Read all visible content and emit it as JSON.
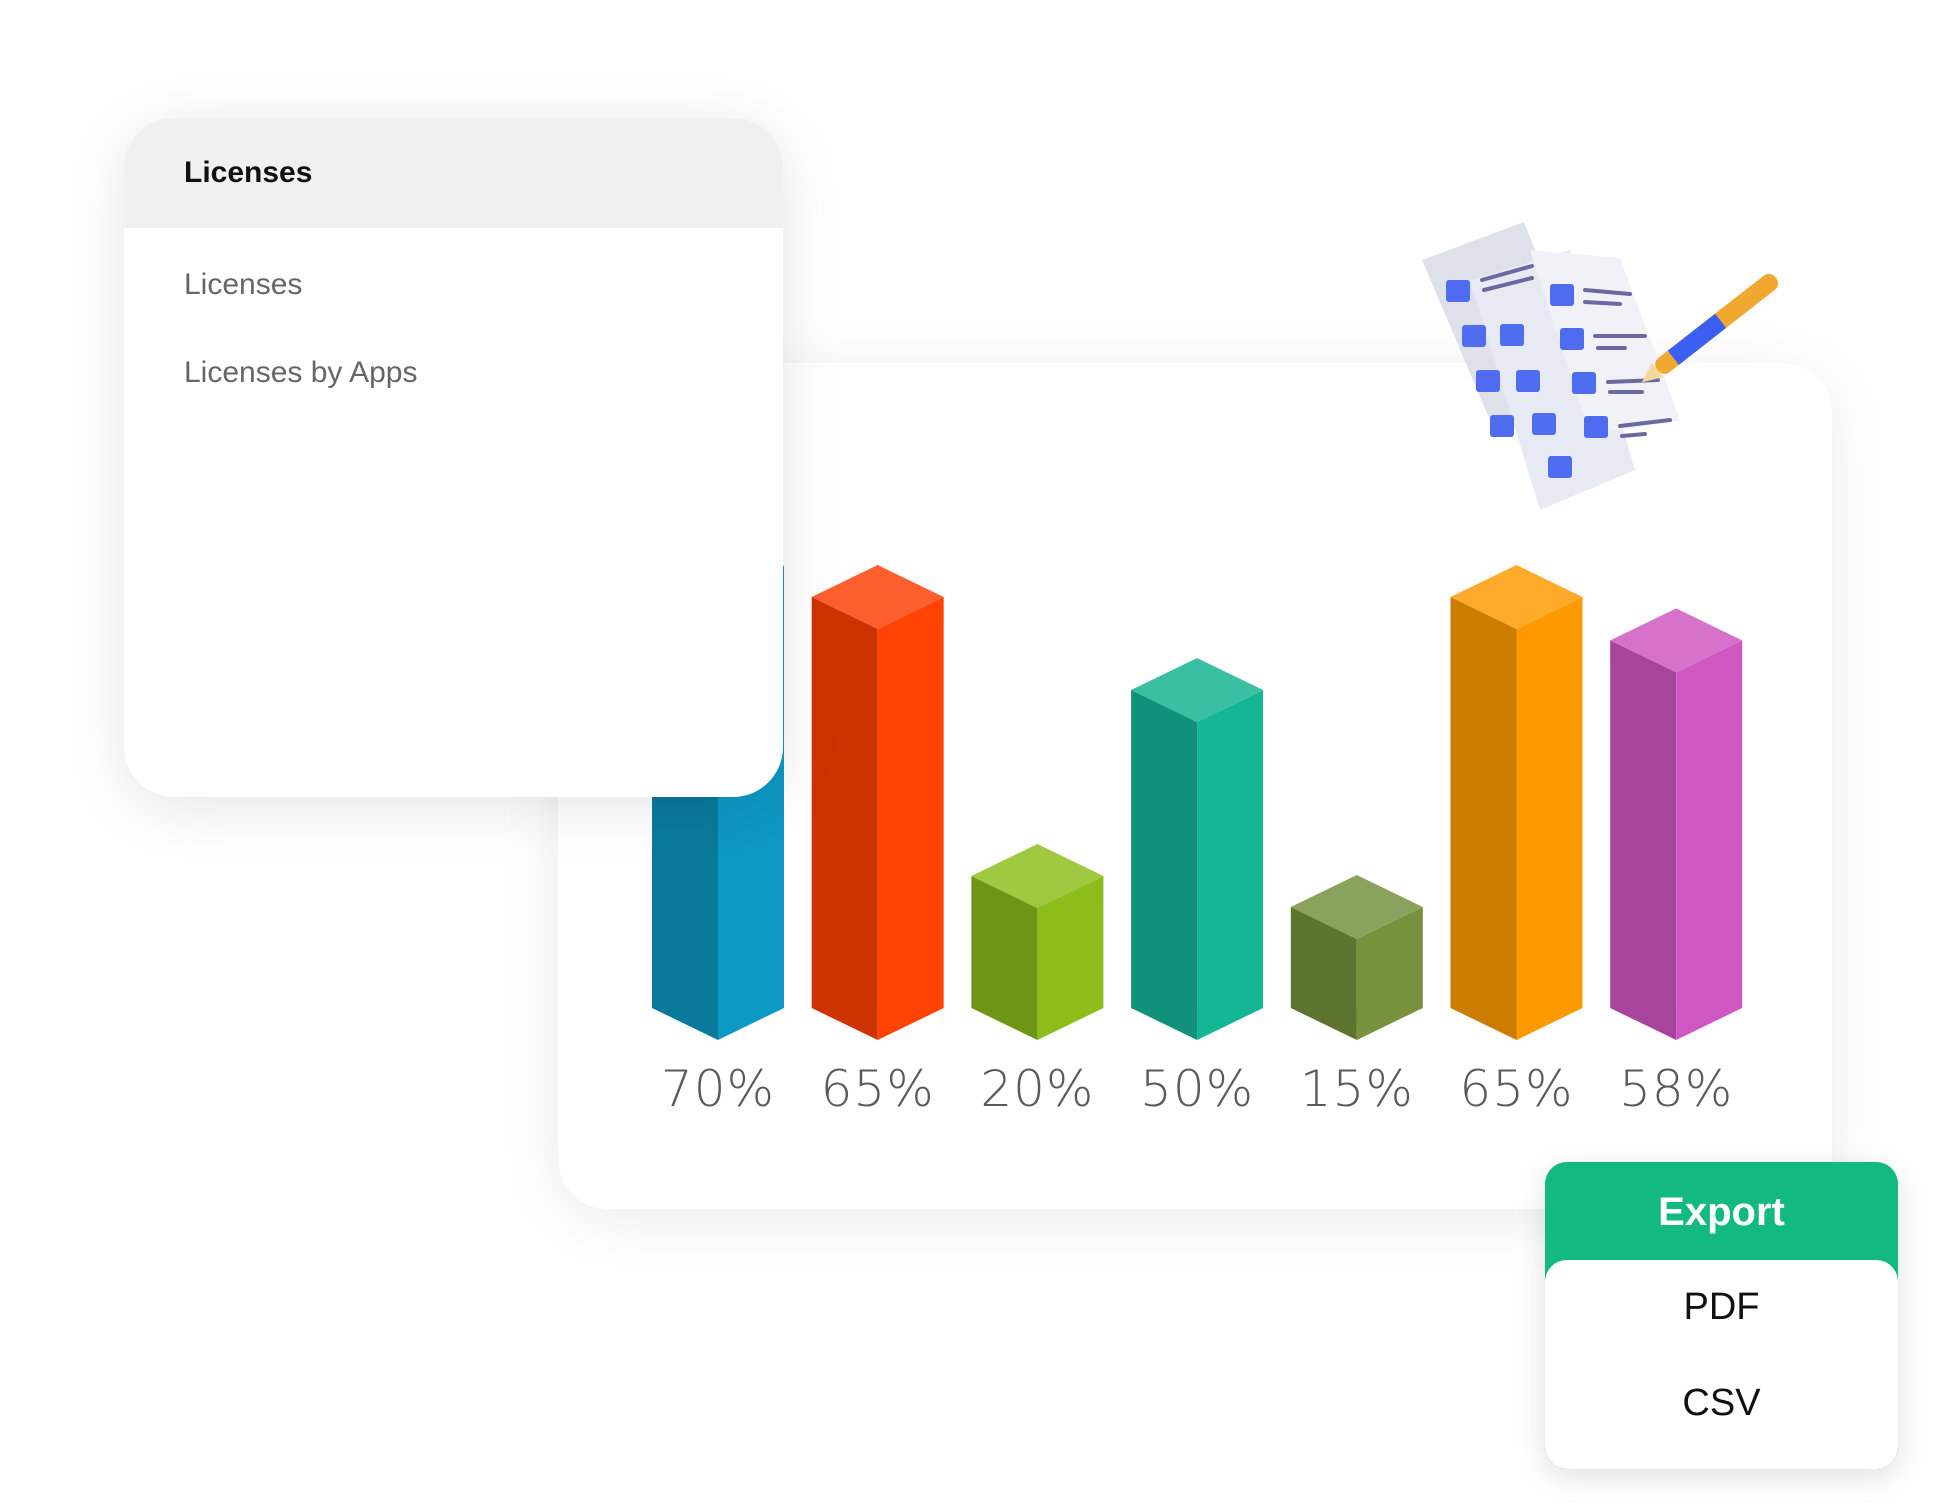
{
  "menu": {
    "header": "Licenses",
    "items": [
      {
        "label": "Licenses"
      },
      {
        "label": "Licenses by Apps"
      }
    ]
  },
  "chart_data": {
    "type": "bar",
    "style": "3d-isometric",
    "categories": [
      "",
      "",
      "",
      "",
      "",
      "",
      ""
    ],
    "values": [
      70,
      65,
      20,
      50,
      15,
      65,
      58
    ],
    "labels": [
      "70%",
      "65%",
      "20%",
      "50%",
      "15%",
      "65%",
      "58%"
    ],
    "colors": [
      {
        "front": "#0e98c4",
        "side": "#0a7a9b",
        "top": "#2aa8d0"
      },
      {
        "front": "#ff4304",
        "side": "#cc3300",
        "top": "#ff5e2e"
      },
      {
        "front": "#8cbd1a",
        "side": "#6e9616",
        "top": "#a0c840"
      },
      {
        "front": "#15b695",
        "side": "#11917a",
        "top": "#3bbfa3"
      },
      {
        "front": "#77913d",
        "side": "#5d7431",
        "top": "#8aa35c"
      },
      {
        "front": "#ff9900",
        "side": "#cc7c00",
        "top": "#ffaa2a"
      },
      {
        "front": "#d057c2",
        "side": "#a7449c",
        "top": "#d772cb"
      }
    ],
    "grid": false,
    "ylim": [
      0,
      100
    ]
  },
  "export": {
    "button_label": "Export",
    "options": [
      "PDF",
      "CSV"
    ],
    "color": "#12b981"
  }
}
